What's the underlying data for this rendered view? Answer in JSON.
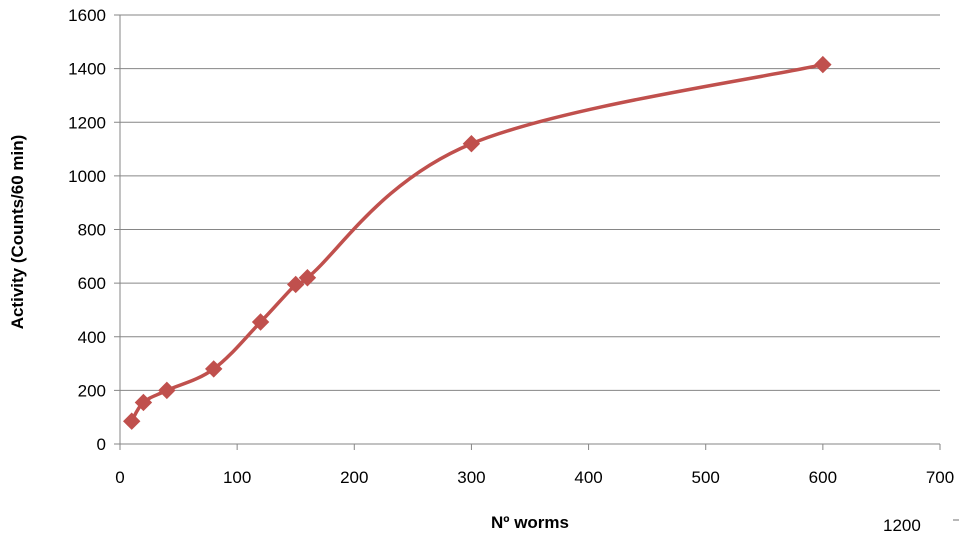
{
  "chart_data": {
    "type": "scatter",
    "title": "",
    "xlabel": "Nº worms",
    "ylabel": "Activity (Counts/60 min)",
    "xlim": [
      0,
      700
    ],
    "ylim": [
      0,
      1600
    ],
    "x_ticks": [
      0,
      100,
      200,
      300,
      400,
      500,
      600,
      700
    ],
    "y_ticks": [
      0,
      200,
      400,
      600,
      800,
      1000,
      1200,
      1400,
      1600
    ],
    "grid": "horizontal",
    "legend": "none",
    "smooth_line": true,
    "series": [
      {
        "color": "#c0504d",
        "marker": "diamond",
        "points": [
          {
            "x": 10,
            "y": 85
          },
          {
            "x": 20,
            "y": 155
          },
          {
            "x": 40,
            "y": 200
          },
          {
            "x": 80,
            "y": 280
          },
          {
            "x": 120,
            "y": 455
          },
          {
            "x": 150,
            "y": 595
          },
          {
            "x": 160,
            "y": 620
          },
          {
            "x": 300,
            "y": 1120
          },
          {
            "x": 600,
            "y": 1415
          }
        ]
      }
    ],
    "annotations": [
      "1200"
    ]
  }
}
